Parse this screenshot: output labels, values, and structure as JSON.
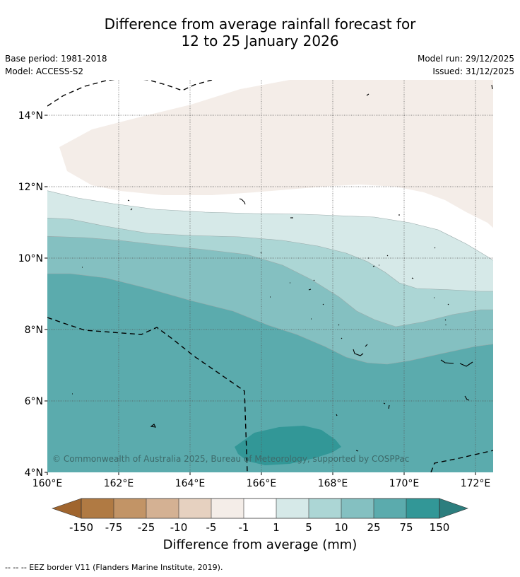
{
  "title": {
    "line1": "Difference from average rainfall forecast for",
    "line2": "12 to 25 January 2026"
  },
  "meta": {
    "base_period": "Base period: 1981-2018",
    "model": "Model: ACCESS-S2",
    "model_run": "Model run: 29/12/2025",
    "issued": "Issued: 31/12/2025"
  },
  "map": {
    "lat_ticks": [
      "14°N",
      "12°N",
      "10°N",
      "8°N",
      "6°N",
      "4°N"
    ],
    "lon_ticks": [
      "160°E",
      "162°E",
      "164°E",
      "166°E",
      "168°E",
      "170°E",
      "172°E"
    ],
    "copyright": "© Commonwealth of Australia 2025, Bureau of Meteorology, supported by COSPPac"
  },
  "legend": {
    "title": "Difference from average (mm)",
    "tick_labels": [
      "-150",
      "-75",
      "-25",
      "-10",
      "-5",
      "-1",
      "1",
      "5",
      "10",
      "25",
      "75",
      "150"
    ],
    "colors": {
      "below_min": "#a0652e",
      "bin_1": "#b07a43",
      "bin_2": "#c29466",
      "bin_3": "#d4b193",
      "bin_4": "#e6d1c0",
      "bin_5": "#f4ede8",
      "bin_6": "#ffffff",
      "bin_7": "#d6e9e8",
      "bin_8": "#acd6d5",
      "bin_9": "#84c0c1",
      "bin_10": "#5babad",
      "bin_11": "#329797",
      "above_max": "#2c7e7e"
    }
  },
  "footnote": "-- -- -- EEZ border V11 (Flanders Marine Institute, 2019)."
}
